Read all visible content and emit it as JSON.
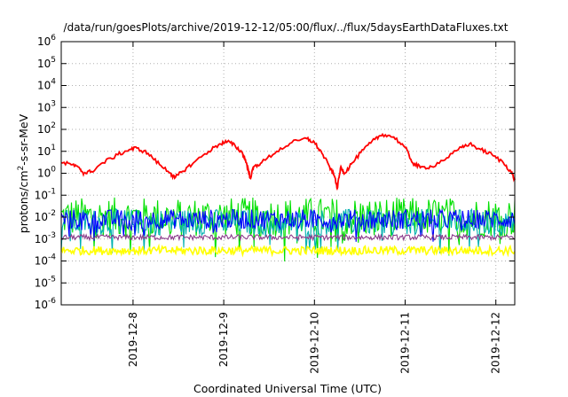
{
  "chart_data": {
    "type": "line",
    "title": "/data/run/goesPlots/archive/2019-12-12/05:00/flux/../flux/5daysEarthDataFluxes.txt",
    "xlabel": "Coordinated Universal Time (UTC)",
    "ylabel_main": "protons/cm",
    "ylabel_sup": "2",
    "ylabel_rest": "-s-sr-MeV",
    "y_scale": "log",
    "ylim": [
      1e-06,
      1000000.0
    ],
    "xlim": [
      "2019-12-07 05:00",
      "2019-12-12 05:00"
    ],
    "grid": true,
    "y_ticks": [
      {
        "base": "10",
        "exp": "-6"
      },
      {
        "base": "10",
        "exp": "-5"
      },
      {
        "base": "10",
        "exp": "-4"
      },
      {
        "base": "10",
        "exp": "-3"
      },
      {
        "base": "10",
        "exp": "-2"
      },
      {
        "base": "10",
        "exp": "-1"
      },
      {
        "base": "10",
        "exp": "0"
      },
      {
        "base": "10",
        "exp": "1"
      },
      {
        "base": "10",
        "exp": "2"
      },
      {
        "base": "10",
        "exp": "3"
      },
      {
        "base": "10",
        "exp": "4"
      },
      {
        "base": "10",
        "exp": "5"
      },
      {
        "base": "10",
        "exp": "6"
      }
    ],
    "x_ticks": [
      "2019-12-8",
      "2019-12-9",
      "2019-12-10",
      "2019-12-11",
      "2019-12-12"
    ],
    "series": [
      {
        "color": "#ff0000",
        "points": [
          [
            "2019-12-07 05:00",
            3
          ],
          [
            "2019-12-07 08:00",
            2.5
          ],
          [
            "2019-12-07 10:00",
            1.5
          ],
          [
            "2019-12-07 11:00",
            1.0
          ],
          [
            "2019-12-07 13:00",
            1.2
          ],
          [
            "2019-12-07 16:00",
            3
          ],
          [
            "2019-12-07 20:00",
            7
          ],
          [
            "2019-12-07 23:00",
            12
          ],
          [
            "2019-12-08 01:00",
            14
          ],
          [
            "2019-12-08 04:00",
            8
          ],
          [
            "2019-12-08 07:00",
            2.5
          ],
          [
            "2019-12-08 10:00",
            1.0
          ],
          [
            "2019-12-08 11:00",
            0.6
          ],
          [
            "2019-12-08 13:00",
            1.2
          ],
          [
            "2019-12-08 16:00",
            3
          ],
          [
            "2019-12-08 20:00",
            10
          ],
          [
            "2019-12-08 23:00",
            22
          ],
          [
            "2019-12-09 01:00",
            28
          ],
          [
            "2019-12-09 03:00",
            18
          ],
          [
            "2019-12-09 05:00",
            8
          ],
          [
            "2019-12-09 06:00",
            3
          ],
          [
            "2019-12-09 07:00",
            0.6
          ],
          [
            "2019-12-09 08:00",
            2
          ],
          [
            "2019-12-09 10:00",
            3
          ],
          [
            "2019-12-09 14:00",
            10
          ],
          [
            "2019-12-09 18:00",
            25
          ],
          [
            "2019-12-09 22:00",
            38
          ],
          [
            "2019-12-10 00:00",
            25
          ],
          [
            "2019-12-10 02:00",
            8
          ],
          [
            "2019-12-10 04:00",
            2
          ],
          [
            "2019-12-10 05:30",
            0.6
          ],
          [
            "2019-12-10 06:00",
            0.2
          ],
          [
            "2019-12-10 07:00",
            2
          ],
          [
            "2019-12-10 08:00",
            1.0
          ],
          [
            "2019-12-10 10:00",
            3
          ],
          [
            "2019-12-10 13:00",
            12
          ],
          [
            "2019-12-10 16:00",
            35
          ],
          [
            "2019-12-10 18:00",
            60
          ],
          [
            "2019-12-10 21:00",
            45
          ],
          [
            "2019-12-11 00:00",
            15
          ],
          [
            "2019-12-11 02:00",
            3
          ],
          [
            "2019-12-11 04:00",
            1.8
          ],
          [
            "2019-12-11 07:00",
            2
          ],
          [
            "2019-12-11 11:00",
            5
          ],
          [
            "2019-12-11 15:00",
            15
          ],
          [
            "2019-12-11 17:00",
            22
          ],
          [
            "2019-12-11 20:00",
            12
          ],
          [
            "2019-12-11 23:00",
            7
          ],
          [
            "2019-12-12 02:00",
            3
          ],
          [
            "2019-12-12 04:00",
            1.2
          ],
          [
            "2019-12-12 05:00",
            0.5
          ]
        ]
      },
      {
        "color": "#00e000",
        "band": {
          "mean": 0.01,
          "spread": 0.9
        }
      },
      {
        "color": "#00b0b0",
        "band": {
          "mean": 0.006,
          "spread": 0.6
        }
      },
      {
        "color": "#0000ff",
        "band": {
          "mean": 0.008,
          "spread": 0.45
        }
      },
      {
        "color": "#8a3a8a",
        "band": {
          "mean": 0.0012,
          "spread": 0.12
        }
      },
      {
        "color": "#ffff00",
        "band": {
          "mean": 0.0003,
          "spread": 0.2
        }
      }
    ]
  }
}
